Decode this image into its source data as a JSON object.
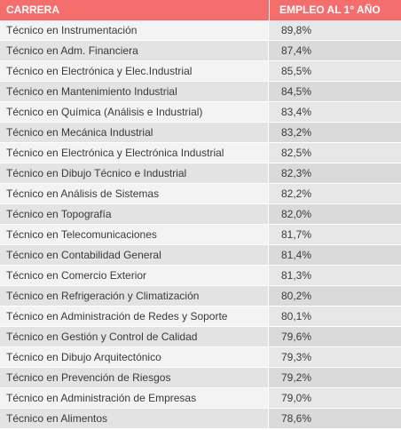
{
  "table": {
    "headers": {
      "career": "CARRERA",
      "employment": "EMPLEO AL 1° AÑO"
    },
    "rows": [
      {
        "career": "Técnico en Instrumentación",
        "employment": "89,8%"
      },
      {
        "career": "Técnico en Adm. Financiera",
        "employment": "87,4%"
      },
      {
        "career": "Técnico en Electrónica y Elec.Industrial",
        "employment": "85,5%"
      },
      {
        "career": "Técnico en Mantenimiento Industrial",
        "employment": "84,5%"
      },
      {
        "career": "Técnico en Química (Análisis e Industrial)",
        "employment": "83,4%"
      },
      {
        "career": "Técnico en Mecánica Industrial",
        "employment": "83,2%"
      },
      {
        "career": "Técnico en Electrónica y Electrónica Industrial",
        "employment": "82,5%"
      },
      {
        "career": "Técnico en Dibujo Técnico e Industrial",
        "employment": "82,3%"
      },
      {
        "career": "Técnico en Análisis de Sistemas",
        "employment": "82,2%"
      },
      {
        "career": "Técnico en Topografía",
        "employment": "82,0%"
      },
      {
        "career": "Técnico en Telecomunicaciones",
        "employment": "81,7%"
      },
      {
        "career": "Técnico en Contabilidad General",
        "employment": "81,4%"
      },
      {
        "career": "Técnico en Comercio Exterior",
        "employment": "81,3%"
      },
      {
        "career": "Técnico en Refrigeración y Climatización",
        "employment": "80,2%"
      },
      {
        "career": "Técnico en Administración de Redes y Soporte",
        "employment": "80,1%"
      },
      {
        "career": "Técnico en Gestión y Control de Calidad",
        "employment": "79,6%"
      },
      {
        "career": "Técnico en Dibujo Arquitectónico",
        "employment": "79,3%"
      },
      {
        "career": "Técnico en Prevención de Riesgos",
        "employment": "79,2%"
      },
      {
        "career": "Técnico en Administración de Empresas",
        "employment": "79,0%"
      },
      {
        "career": "Técnico en Alimentos",
        "employment": "78,6%"
      }
    ]
  },
  "colors": {
    "header_bg": "#f56e6e",
    "header_text": "#ffffff",
    "row_text": "#3a3a3a"
  }
}
